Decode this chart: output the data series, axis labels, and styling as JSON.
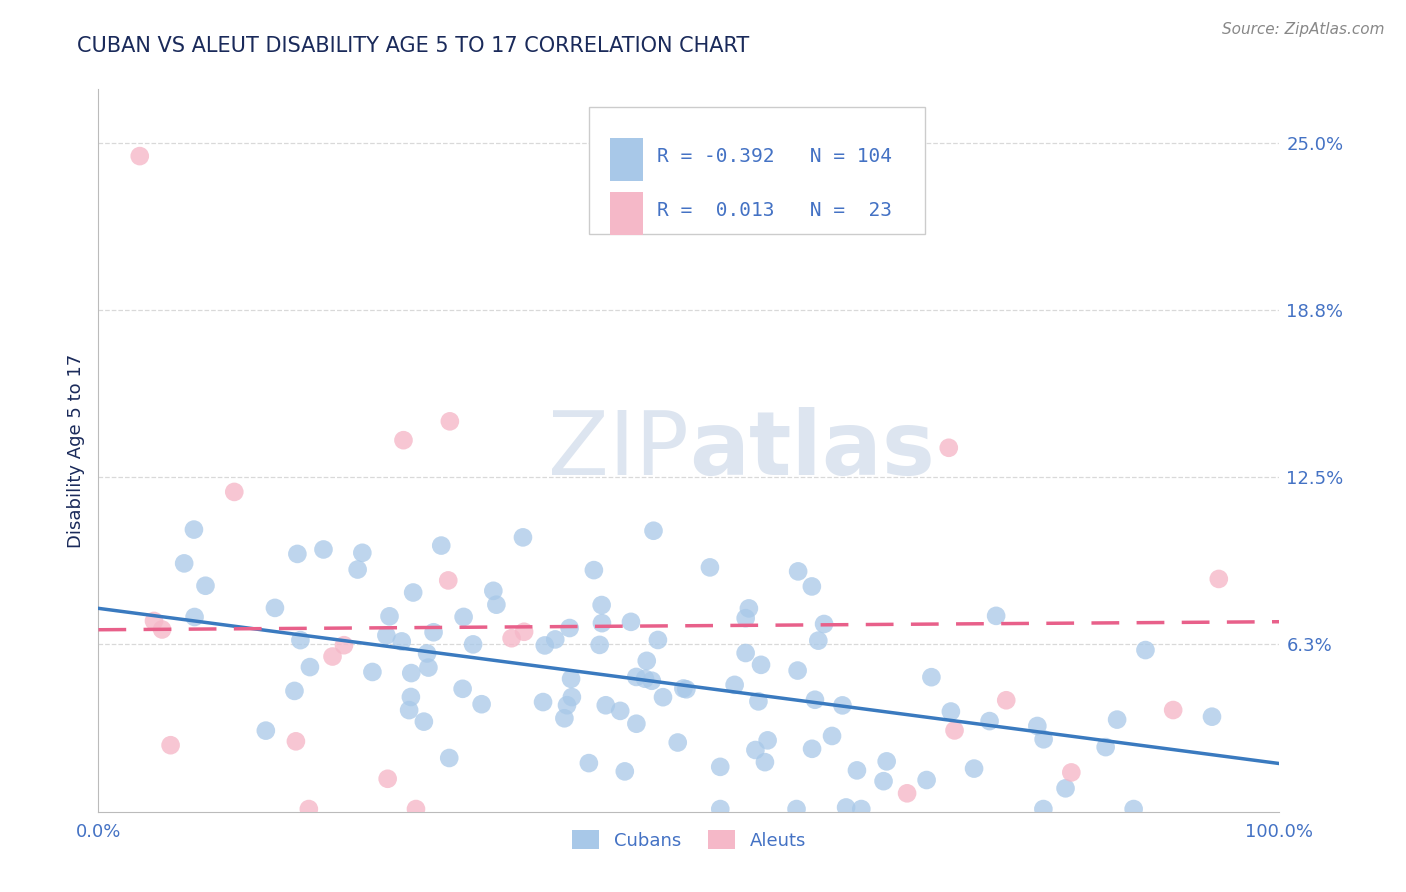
{
  "title": "CUBAN VS ALEUT DISABILITY AGE 5 TO 17 CORRELATION CHART",
  "source_text": "Source: ZipAtlas.com",
  "ylabel": "Disability Age 5 to 17",
  "xlim": [
    0.0,
    1.0
  ],
  "ylim": [
    0.0,
    0.27
  ],
  "yticks": [
    0.0625,
    0.125,
    0.1875,
    0.25
  ],
  "ytick_labels": [
    "6.3%",
    "12.5%",
    "18.8%",
    "25.0%"
  ],
  "xtick_labels": [
    "0.0%",
    "100.0%"
  ],
  "cuban_color": "#a8c8e8",
  "aleut_color": "#f5b8c8",
  "cuban_line_color": "#3a7abf",
  "aleut_line_color": "#e8608a",
  "grid_color": "#d0d0d0",
  "title_color": "#1a2a5a",
  "axis_label_color": "#1a2a5a",
  "tick_label_color": "#4472c4",
  "legend_r_color": "#4472c4",
  "watermark_color": "#dde5f0",
  "R_cuban": -0.392,
  "N_cuban": 104,
  "R_aleut": 0.013,
  "N_aleut": 23,
  "cuban_trend_start_y": 0.076,
  "cuban_trend_end_y": 0.018,
  "aleut_trend_start_y": 0.068,
  "aleut_trend_end_y": 0.071,
  "legend_box_color_cuban": "#a8c8e8",
  "legend_box_color_aleut": "#f5b8c8"
}
